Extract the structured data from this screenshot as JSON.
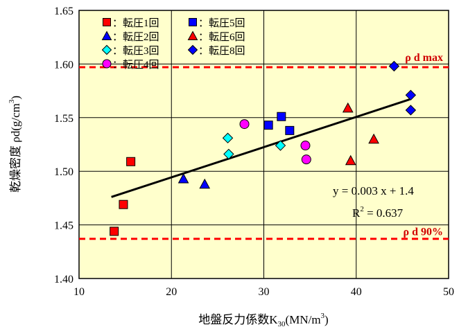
{
  "chart_data": {
    "type": "scatter",
    "title": "",
    "xlabel": "地盤反力係数K",
    "xlabel_sub": "30",
    "xlabel_unit": "(MN/m",
    "xlabel_sup": "3",
    "xlabel_end": ")",
    "ylabel": "乾燥密度 ρd(g/cm",
    "ylabel_sup": "3",
    "ylabel_end": ")",
    "xlim": [
      10,
      50
    ],
    "ylim": [
      1.4,
      1.65
    ],
    "xticks": [
      "10",
      "20",
      "30",
      "40",
      "50"
    ],
    "yticks": [
      "1.40",
      "1.45",
      "1.50",
      "1.55",
      "1.60",
      "1.65"
    ],
    "grid": true,
    "plot_background": "#ffffcc",
    "legend_position": "top-left",
    "series": [
      {
        "name": "：転圧1回",
        "marker": "square",
        "color": "#ff0000",
        "points": [
          [
            13.8,
            1.444
          ],
          [
            14.8,
            1.469
          ],
          [
            15.6,
            1.509
          ]
        ]
      },
      {
        "name": "：転圧2回",
        "marker": "triangle",
        "color": "#0000ff",
        "points": [
          [
            21.3,
            1.493
          ],
          [
            23.6,
            1.488
          ]
        ]
      },
      {
        "name": "：転圧3回",
        "marker": "diamond",
        "color": "#00ffff",
        "points": [
          [
            26.1,
            1.531
          ],
          [
            26.2,
            1.516
          ],
          [
            31.8,
            1.524
          ]
        ]
      },
      {
        "name": "：転圧4回",
        "marker": "circle",
        "color": "#ff00ff",
        "points": [
          [
            27.9,
            1.544
          ],
          [
            34.5,
            1.524
          ],
          [
            34.6,
            1.511
          ]
        ]
      },
      {
        "name": "：転圧5回",
        "marker": "square",
        "color": "#0000ff",
        "points": [
          [
            30.5,
            1.543
          ],
          [
            31.9,
            1.551
          ],
          [
            32.8,
            1.538
          ]
        ]
      },
      {
        "name": "：転圧6回",
        "marker": "triangle",
        "color": "#ff0000",
        "points": [
          [
            39.1,
            1.559
          ],
          [
            39.4,
            1.51
          ],
          [
            41.9,
            1.53
          ]
        ]
      },
      {
        "name": "：転圧8回",
        "marker": "diamond",
        "color": "#0000ff",
        "points": [
          [
            44.1,
            1.598
          ],
          [
            45.9,
            1.571
          ],
          [
            45.9,
            1.557
          ]
        ]
      }
    ],
    "trendline": {
      "x": [
        13.5,
        45.8
      ],
      "y": [
        1.476,
        1.567
      ],
      "color": "#000000"
    },
    "equation": "y = 0.003 x + 1.4",
    "r2_prefix": "R",
    "r2_sup": "2",
    "r2_value": " = 0.637",
    "reference_lines": [
      {
        "label": "ρ d max",
        "y": 1.597,
        "color": "#ff0000"
      },
      {
        "label": "ρ d 90%",
        "y": 1.437,
        "color": "#ff0000"
      }
    ]
  }
}
